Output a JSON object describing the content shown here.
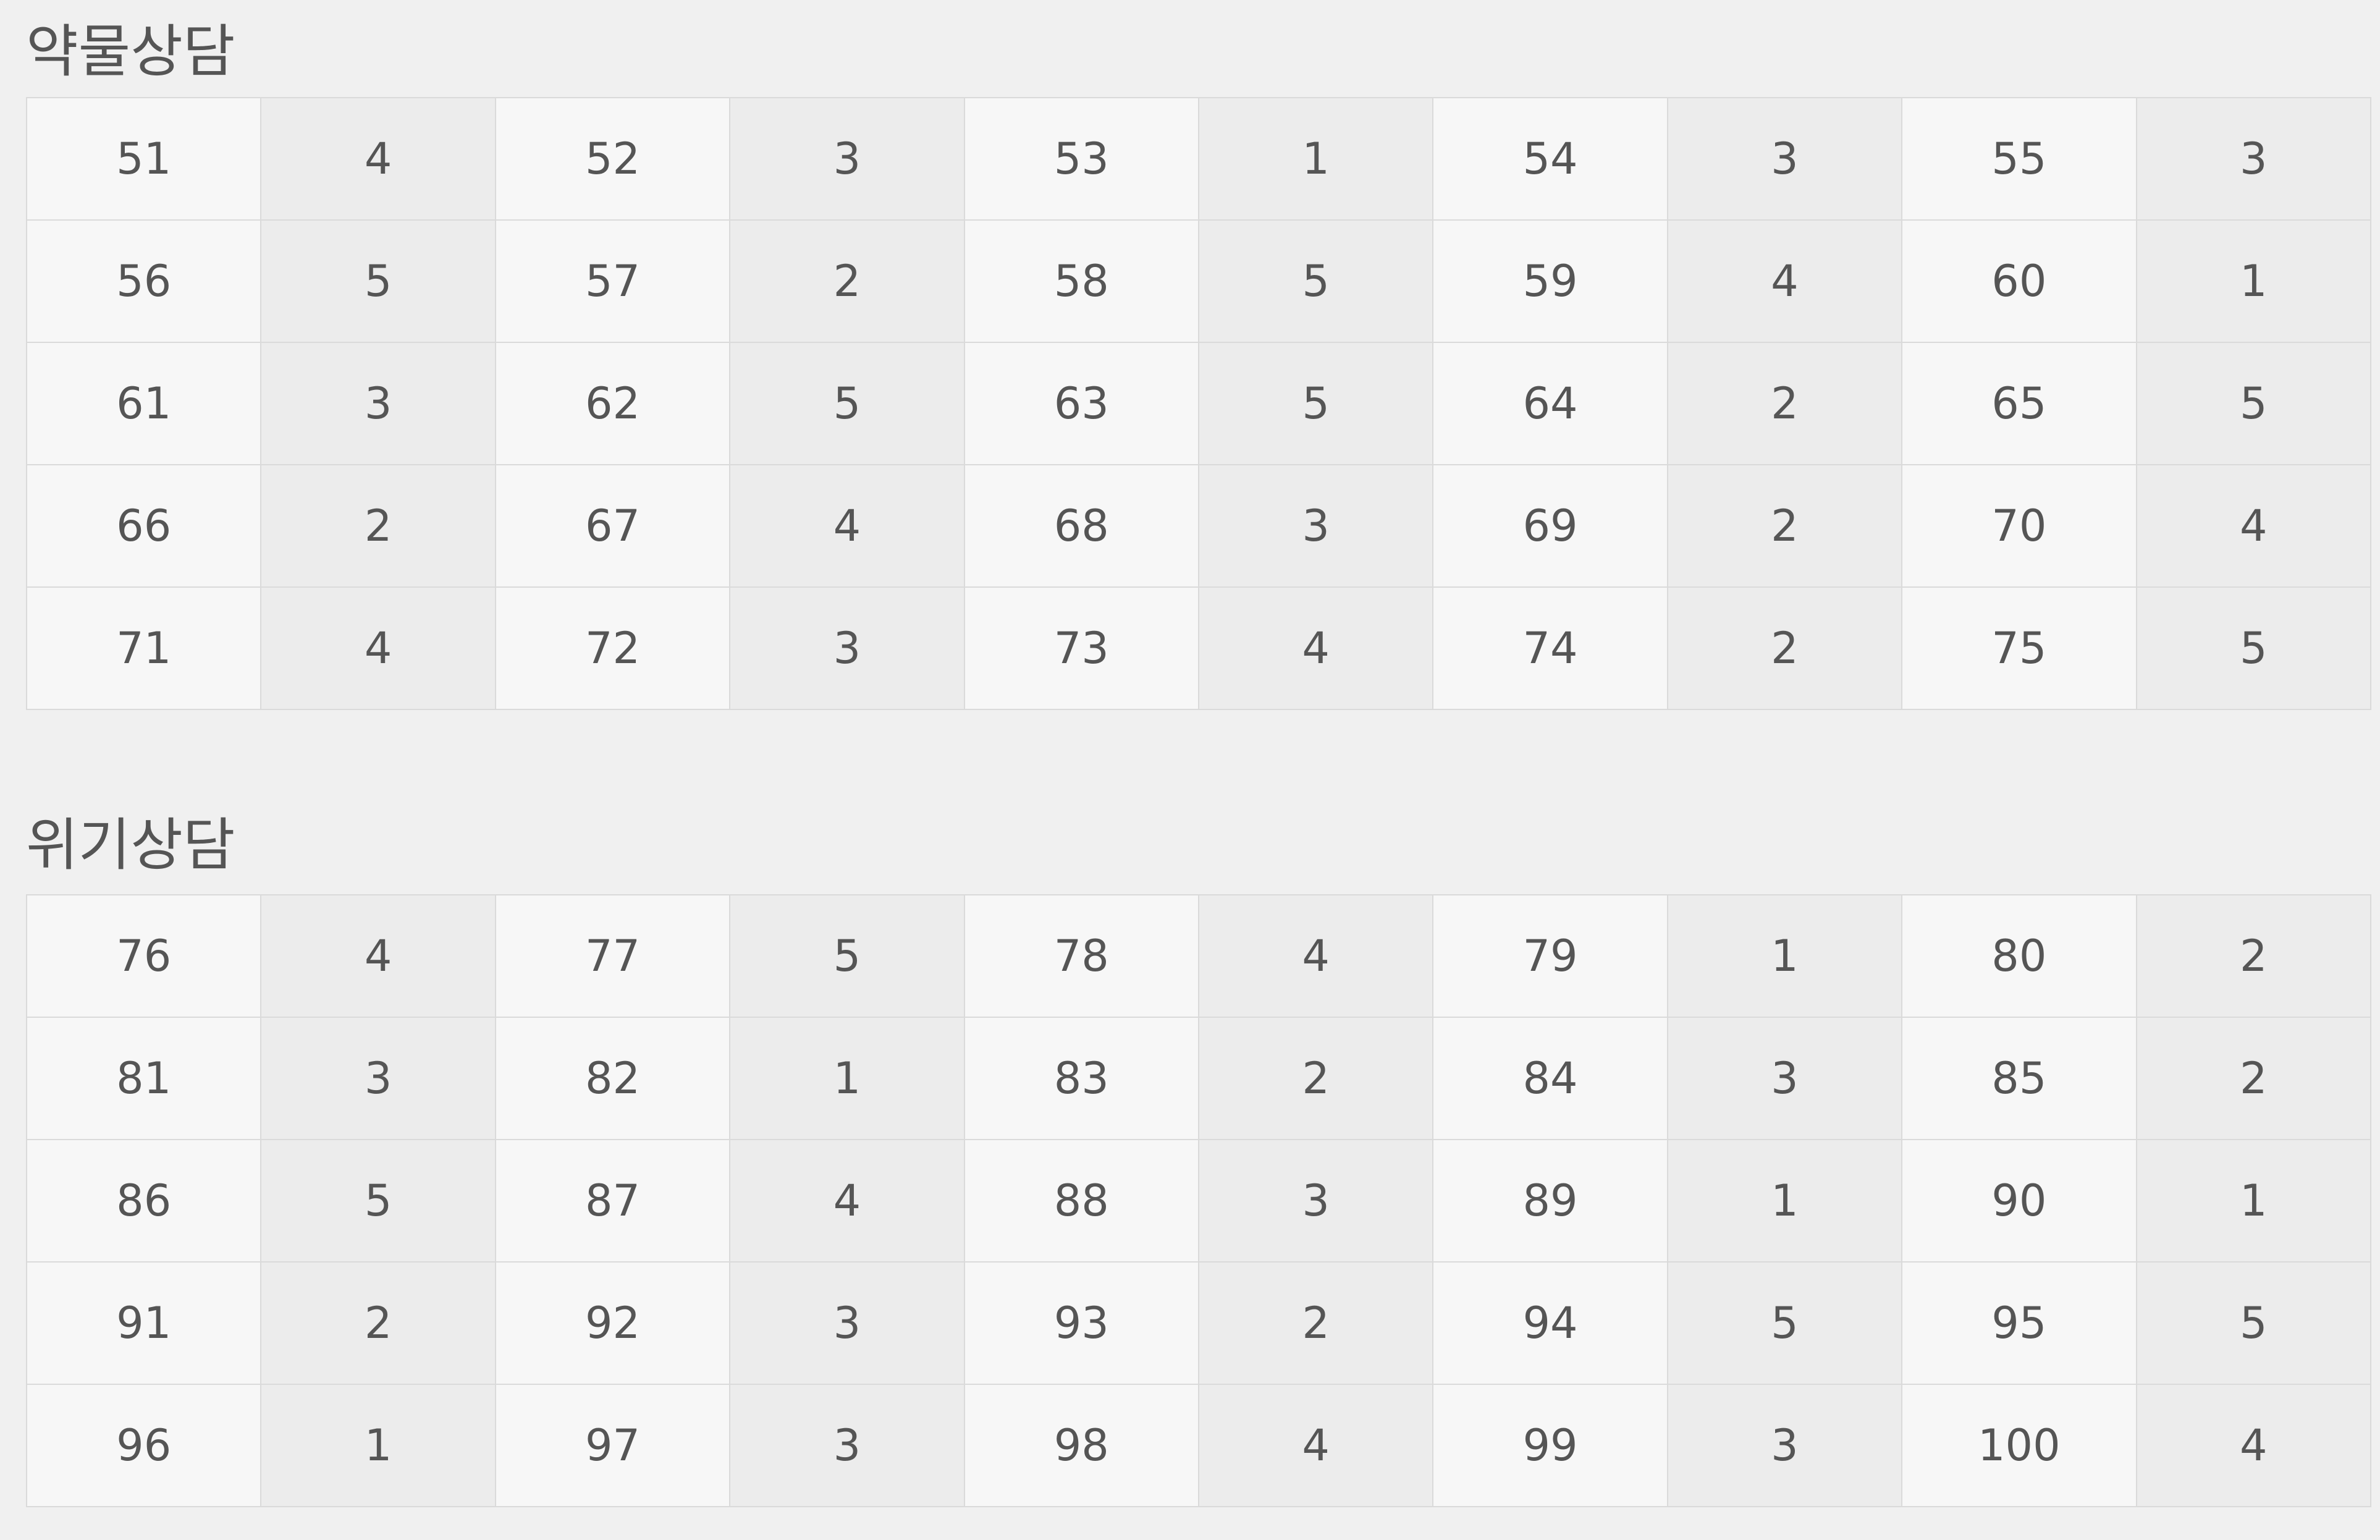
{
  "sections": [
    {
      "title": "약물상담",
      "rows": [
        [
          [
            51,
            4
          ],
          [
            52,
            3
          ],
          [
            53,
            1
          ],
          [
            54,
            3
          ],
          [
            55,
            3
          ]
        ],
        [
          [
            56,
            5
          ],
          [
            57,
            2
          ],
          [
            58,
            5
          ],
          [
            59,
            4
          ],
          [
            60,
            1
          ]
        ],
        [
          [
            61,
            3
          ],
          [
            62,
            5
          ],
          [
            63,
            5
          ],
          [
            64,
            2
          ],
          [
            65,
            5
          ]
        ],
        [
          [
            66,
            2
          ],
          [
            67,
            4
          ],
          [
            68,
            3
          ],
          [
            69,
            2
          ],
          [
            70,
            4
          ]
        ],
        [
          [
            71,
            4
          ],
          [
            72,
            3
          ],
          [
            73,
            4
          ],
          [
            74,
            2
          ],
          [
            75,
            5
          ]
        ]
      ]
    },
    {
      "title": "위기상담",
      "rows": [
        [
          [
            76,
            4
          ],
          [
            77,
            5
          ],
          [
            78,
            4
          ],
          [
            79,
            1
          ],
          [
            80,
            2
          ]
        ],
        [
          [
            81,
            3
          ],
          [
            82,
            1
          ],
          [
            83,
            2
          ],
          [
            84,
            3
          ],
          [
            85,
            2
          ]
        ],
        [
          [
            86,
            5
          ],
          [
            87,
            4
          ],
          [
            88,
            3
          ],
          [
            89,
            1
          ],
          [
            90,
            1
          ]
        ],
        [
          [
            91,
            2
          ],
          [
            92,
            3
          ],
          [
            93,
            2
          ],
          [
            94,
            5
          ],
          [
            95,
            5
          ]
        ],
        [
          [
            96,
            1
          ],
          [
            97,
            3
          ],
          [
            98,
            4
          ],
          [
            99,
            3
          ],
          [
            100,
            4
          ]
        ]
      ]
    }
  ]
}
